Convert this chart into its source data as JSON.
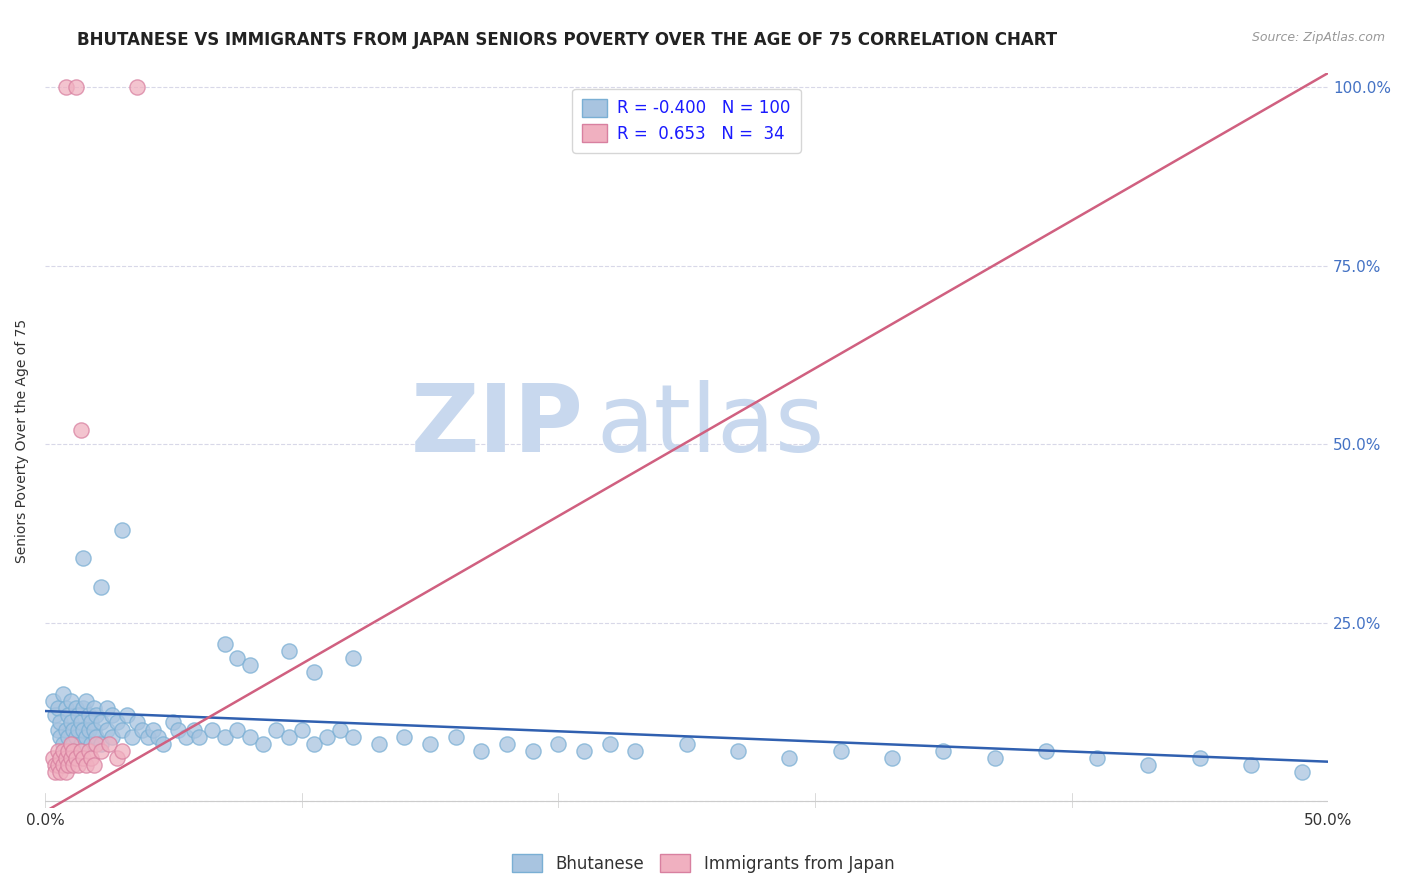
{
  "title": "BHUTANESE VS IMMIGRANTS FROM JAPAN SENIORS POVERTY OVER THE AGE OF 75 CORRELATION CHART",
  "source": "Source: ZipAtlas.com",
  "ylabel": "Seniors Poverty Over the Age of 75",
  "xlim": [
    0.0,
    0.5
  ],
  "ylim": [
    -0.01,
    1.02
  ],
  "x_ticks": [
    0.0,
    0.1,
    0.2,
    0.3,
    0.4,
    0.5
  ],
  "x_tick_labels": [
    "0.0%",
    "",
    "",
    "",
    "",
    "50.0%"
  ],
  "y_ticks": [
    0.0,
    0.25,
    0.5,
    0.75,
    1.0
  ],
  "y_tick_labels_right": [
    "",
    "25.0%",
    "50.0%",
    "75.0%",
    "100.0%"
  ],
  "bhutanese_R": -0.4,
  "bhutanese_N": 100,
  "japan_R": 0.653,
  "japan_N": 34,
  "blue_color": "#a8c4e0",
  "blue_edge_color": "#7aafd4",
  "blue_line_color": "#3060b0",
  "pink_color": "#f0b0c0",
  "pink_edge_color": "#d880a0",
  "pink_line_color": "#d06080",
  "background_color": "#ffffff",
  "grid_color": "#d8d8e8",
  "title_fontsize": 12,
  "source_fontsize": 9,
  "axis_label_fontsize": 10,
  "tick_fontsize": 11,
  "right_tick_color": "#4472c4",
  "watermark_zip": "ZIP",
  "watermark_atlas": "atlas",
  "watermark_color_zip": "#c8d8ee",
  "watermark_color_atlas": "#c8d8ee",
  "blue_line_x0": 0.0,
  "blue_line_y0": 0.126,
  "blue_line_x1": 0.5,
  "blue_line_y1": 0.055,
  "pink_line_x0": 0.0,
  "pink_line_y0": -0.015,
  "pink_line_x1": 0.5,
  "pink_line_y1": 1.02,
  "blue_dots": [
    [
      0.003,
      0.14
    ],
    [
      0.004,
      0.12
    ],
    [
      0.005,
      0.1
    ],
    [
      0.005,
      0.13
    ],
    [
      0.006,
      0.11
    ],
    [
      0.006,
      0.09
    ],
    [
      0.007,
      0.15
    ],
    [
      0.007,
      0.08
    ],
    [
      0.008,
      0.13
    ],
    [
      0.008,
      0.1
    ],
    [
      0.009,
      0.12
    ],
    [
      0.009,
      0.09
    ],
    [
      0.01,
      0.14
    ],
    [
      0.01,
      0.11
    ],
    [
      0.011,
      0.1
    ],
    [
      0.011,
      0.08
    ],
    [
      0.012,
      0.13
    ],
    [
      0.012,
      0.09
    ],
    [
      0.013,
      0.12
    ],
    [
      0.013,
      0.1
    ],
    [
      0.014,
      0.11
    ],
    [
      0.014,
      0.08
    ],
    [
      0.015,
      0.13
    ],
    [
      0.015,
      0.1
    ],
    [
      0.016,
      0.14
    ],
    [
      0.016,
      0.09
    ],
    [
      0.017,
      0.12
    ],
    [
      0.017,
      0.1
    ],
    [
      0.018,
      0.11
    ],
    [
      0.018,
      0.08
    ],
    [
      0.019,
      0.13
    ],
    [
      0.019,
      0.1
    ],
    [
      0.02,
      0.12
    ],
    [
      0.02,
      0.09
    ],
    [
      0.022,
      0.11
    ],
    [
      0.022,
      0.08
    ],
    [
      0.024,
      0.13
    ],
    [
      0.024,
      0.1
    ],
    [
      0.026,
      0.12
    ],
    [
      0.026,
      0.09
    ],
    [
      0.028,
      0.11
    ],
    [
      0.03,
      0.1
    ],
    [
      0.032,
      0.12
    ],
    [
      0.034,
      0.09
    ],
    [
      0.036,
      0.11
    ],
    [
      0.038,
      0.1
    ],
    [
      0.04,
      0.09
    ],
    [
      0.042,
      0.1
    ],
    [
      0.044,
      0.09
    ],
    [
      0.046,
      0.08
    ],
    [
      0.05,
      0.11
    ],
    [
      0.052,
      0.1
    ],
    [
      0.055,
      0.09
    ],
    [
      0.058,
      0.1
    ],
    [
      0.06,
      0.09
    ],
    [
      0.065,
      0.1
    ],
    [
      0.07,
      0.09
    ],
    [
      0.075,
      0.1
    ],
    [
      0.08,
      0.09
    ],
    [
      0.085,
      0.08
    ],
    [
      0.09,
      0.1
    ],
    [
      0.095,
      0.09
    ],
    [
      0.1,
      0.1
    ],
    [
      0.105,
      0.08
    ],
    [
      0.11,
      0.09
    ],
    [
      0.115,
      0.1
    ],
    [
      0.12,
      0.09
    ],
    [
      0.13,
      0.08
    ],
    [
      0.14,
      0.09
    ],
    [
      0.15,
      0.08
    ],
    [
      0.16,
      0.09
    ],
    [
      0.17,
      0.07
    ],
    [
      0.18,
      0.08
    ],
    [
      0.19,
      0.07
    ],
    [
      0.2,
      0.08
    ],
    [
      0.21,
      0.07
    ],
    [
      0.22,
      0.08
    ],
    [
      0.23,
      0.07
    ],
    [
      0.25,
      0.08
    ],
    [
      0.27,
      0.07
    ],
    [
      0.29,
      0.06
    ],
    [
      0.31,
      0.07
    ],
    [
      0.33,
      0.06
    ],
    [
      0.35,
      0.07
    ],
    [
      0.37,
      0.06
    ],
    [
      0.39,
      0.07
    ],
    [
      0.41,
      0.06
    ],
    [
      0.43,
      0.05
    ],
    [
      0.45,
      0.06
    ],
    [
      0.47,
      0.05
    ],
    [
      0.015,
      0.34
    ],
    [
      0.022,
      0.3
    ],
    [
      0.03,
      0.38
    ],
    [
      0.07,
      0.22
    ],
    [
      0.075,
      0.2
    ],
    [
      0.08,
      0.19
    ],
    [
      0.095,
      0.21
    ],
    [
      0.105,
      0.18
    ],
    [
      0.12,
      0.2
    ],
    [
      0.49,
      0.04
    ]
  ],
  "pink_dots": [
    [
      0.003,
      0.06
    ],
    [
      0.004,
      0.05
    ],
    [
      0.004,
      0.04
    ],
    [
      0.005,
      0.07
    ],
    [
      0.005,
      0.05
    ],
    [
      0.006,
      0.06
    ],
    [
      0.006,
      0.04
    ],
    [
      0.007,
      0.07
    ],
    [
      0.007,
      0.05
    ],
    [
      0.008,
      0.06
    ],
    [
      0.008,
      0.04
    ],
    [
      0.009,
      0.07
    ],
    [
      0.009,
      0.05
    ],
    [
      0.01,
      0.08
    ],
    [
      0.01,
      0.06
    ],
    [
      0.011,
      0.07
    ],
    [
      0.011,
      0.05
    ],
    [
      0.012,
      0.06
    ],
    [
      0.013,
      0.05
    ],
    [
      0.014,
      0.07
    ],
    [
      0.015,
      0.06
    ],
    [
      0.016,
      0.05
    ],
    [
      0.017,
      0.07
    ],
    [
      0.018,
      0.06
    ],
    [
      0.019,
      0.05
    ],
    [
      0.02,
      0.08
    ],
    [
      0.022,
      0.07
    ],
    [
      0.025,
      0.08
    ],
    [
      0.028,
      0.06
    ],
    [
      0.03,
      0.07
    ],
    [
      0.008,
      1.0
    ],
    [
      0.012,
      1.0
    ],
    [
      0.036,
      1.0
    ],
    [
      0.014,
      0.52
    ]
  ]
}
